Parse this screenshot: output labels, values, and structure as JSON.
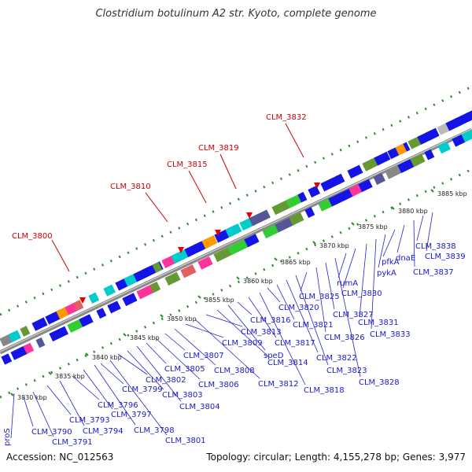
{
  "title": "Clostridium botulinum A2 str. Kyoto, complete genome",
  "footer": {
    "accession": "Accession: NC_012563",
    "summary": "Topology: circular; Length: 4,155,278 bp; Genes: 3,977"
  },
  "ticks": [
    "3830 kbp",
    "3835 kbp",
    "3840 kbp",
    "3845 kbp",
    "3850 kbp",
    "3855 kbp",
    "3860 kbp",
    "3865 kbp",
    "3870 kbp",
    "3875 kbp",
    "3880 kbp",
    "3885 kbp"
  ],
  "red_labels": [
    "CLM_3800",
    "CLM_3810",
    "CLM_3815",
    "CLM_3819",
    "CLM_3832"
  ],
  "blue_labels": [
    "proS",
    "CLM_3790",
    "CLM_3791",
    "CLM_3793",
    "CLM_3794",
    "CLM_3796",
    "CLM_3797",
    "CLM_3798",
    "CLM_3799",
    "CLM_3801",
    "CLM_3802",
    "CLM_3803",
    "CLM_3804",
    "CLM_3805",
    "CLM_3806",
    "CLM_3807",
    "CLM_3808",
    "CLM_3809",
    "CLM_3812",
    "CLM_3813",
    "CLM_3814",
    "speD",
    "CLM_3816",
    "CLM_3817",
    "CLM_3818",
    "CLM_3820",
    "CLM_3821",
    "CLM_3822",
    "CLM_3823",
    "CLM_3825",
    "CLM_3826",
    "CLM_3827",
    "CLM_3828",
    "rumA",
    "CLM_3830",
    "CLM_3831",
    "CLM_3833",
    "pykA",
    "pfkA",
    "dnaE",
    "CLM_3837",
    "CLM_3838",
    "CLM_3839"
  ]
}
